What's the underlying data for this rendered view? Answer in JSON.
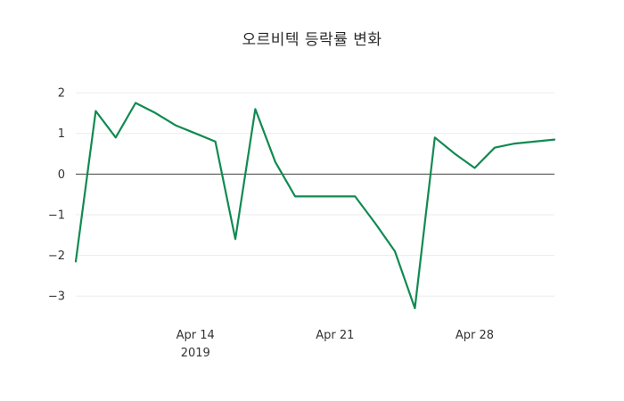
{
  "title": "오르비텍 등락률 변화",
  "chart_data": {
    "type": "line",
    "title": "오르비텍 등락률 변화",
    "series_name": "등락률",
    "x": [
      "2019-04-08",
      "2019-04-09",
      "2019-04-10",
      "2019-04-11",
      "2019-04-12",
      "2019-04-13",
      "2019-04-14",
      "2019-04-15",
      "2019-04-16",
      "2019-04-17",
      "2019-04-18",
      "2019-04-19",
      "2019-04-20",
      "2019-04-21",
      "2019-04-22",
      "2019-04-23",
      "2019-04-24",
      "2019-04-25",
      "2019-04-26",
      "2019-04-27",
      "2019-04-28",
      "2019-04-29",
      "2019-04-30",
      "2019-05-01",
      "2019-05-02"
    ],
    "values": [
      -2.15,
      1.55,
      0.9,
      1.75,
      1.5,
      1.2,
      1.0,
      0.8,
      -1.6,
      1.6,
      0.3,
      -0.55,
      -0.55,
      -0.55,
      -0.55,
      -1.2,
      -1.9,
      -3.3,
      0.9,
      0.5,
      0.15,
      0.65,
      0.75,
      0.8,
      0.85
    ],
    "ylim": [
      -3.5,
      2.2
    ],
    "yticks": [
      {
        "value": 2,
        "label": "2"
      },
      {
        "value": 1,
        "label": "1"
      },
      {
        "value": 0,
        "label": "0"
      },
      {
        "value": -1,
        "label": "−1"
      },
      {
        "value": -2,
        "label": "−2"
      },
      {
        "value": -3,
        "label": "−3"
      }
    ],
    "xticks": [
      {
        "date": "2019-04-14",
        "label": "Apr 14",
        "sublabel": "2019"
      },
      {
        "date": "2019-04-21",
        "label": "Apr 21",
        "sublabel": ""
      },
      {
        "date": "2019-04-28",
        "label": "Apr 28",
        "sublabel": ""
      }
    ],
    "xlabel": "",
    "ylabel": "",
    "legend": "none",
    "grid": true,
    "line_color": "#118a52",
    "zero_line_color": "#444444",
    "grid_color": "#ebebeb",
    "background_color": "#ffffff"
  }
}
